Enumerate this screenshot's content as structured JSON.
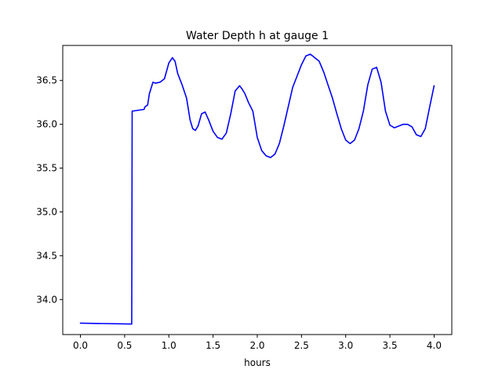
{
  "chart_data": {
    "type": "line",
    "title": "Water Depth h at gauge 1",
    "xlabel": "hours",
    "ylabel": "",
    "xlim": [
      -0.2,
      4.2
    ],
    "ylim": [
      33.6,
      36.9
    ],
    "xticks": [
      0.0,
      0.5,
      1.0,
      1.5,
      2.0,
      2.5,
      3.0,
      3.5,
      4.0
    ],
    "xtick_labels": [
      "0.0",
      "0.5",
      "1.0",
      "1.5",
      "2.0",
      "2.5",
      "3.0",
      "3.5",
      "4.0"
    ],
    "yticks": [
      34.0,
      34.5,
      35.0,
      35.5,
      36.0,
      36.5
    ],
    "ytick_labels": [
      "34.0",
      "34.5",
      "35.0",
      "35.5",
      "36.0",
      "36.5"
    ],
    "grid": false,
    "series": [
      {
        "color": "#0000ff",
        "x": [
          0.0,
          0.58,
          0.585,
          0.72,
          0.73,
          0.76,
          0.78,
          0.82,
          0.85,
          0.9,
          0.95,
          1.0,
          1.04,
          1.07,
          1.1,
          1.15,
          1.2,
          1.24,
          1.27,
          1.3,
          1.33,
          1.37,
          1.41,
          1.45,
          1.5,
          1.55,
          1.6,
          1.65,
          1.7,
          1.75,
          1.8,
          1.83,
          1.86,
          1.9,
          1.95,
          2.0,
          2.05,
          2.1,
          2.15,
          2.2,
          2.25,
          2.3,
          2.35,
          2.4,
          2.45,
          2.5,
          2.55,
          2.6,
          2.65,
          2.7,
          2.75,
          2.8,
          2.85,
          2.9,
          2.95,
          3.0,
          3.05,
          3.1,
          3.15,
          3.2,
          3.25,
          3.3,
          3.35,
          3.4,
          3.45,
          3.5,
          3.55,
          3.6,
          3.65,
          3.7,
          3.75,
          3.8,
          3.85,
          3.9,
          3.95,
          4.0
        ],
        "y": [
          33.73,
          33.72,
          36.15,
          36.17,
          36.2,
          36.22,
          36.35,
          36.48,
          36.47,
          36.48,
          36.52,
          36.7,
          36.76,
          36.72,
          36.58,
          36.45,
          36.3,
          36.05,
          35.95,
          35.93,
          35.98,
          36.12,
          36.14,
          36.05,
          35.92,
          35.85,
          35.83,
          35.9,
          36.12,
          36.38,
          36.44,
          36.4,
          36.35,
          36.25,
          36.15,
          35.85,
          35.7,
          35.64,
          35.62,
          35.66,
          35.78,
          35.98,
          36.2,
          36.42,
          36.55,
          36.68,
          36.78,
          36.8,
          36.76,
          36.72,
          36.6,
          36.45,
          36.3,
          36.12,
          35.95,
          35.82,
          35.78,
          35.82,
          35.95,
          36.15,
          36.45,
          36.63,
          36.65,
          36.48,
          36.15,
          35.99,
          35.96,
          35.98,
          36.0,
          36.0,
          35.97,
          35.88,
          35.86,
          35.95,
          36.2,
          36.44
        ]
      }
    ]
  }
}
